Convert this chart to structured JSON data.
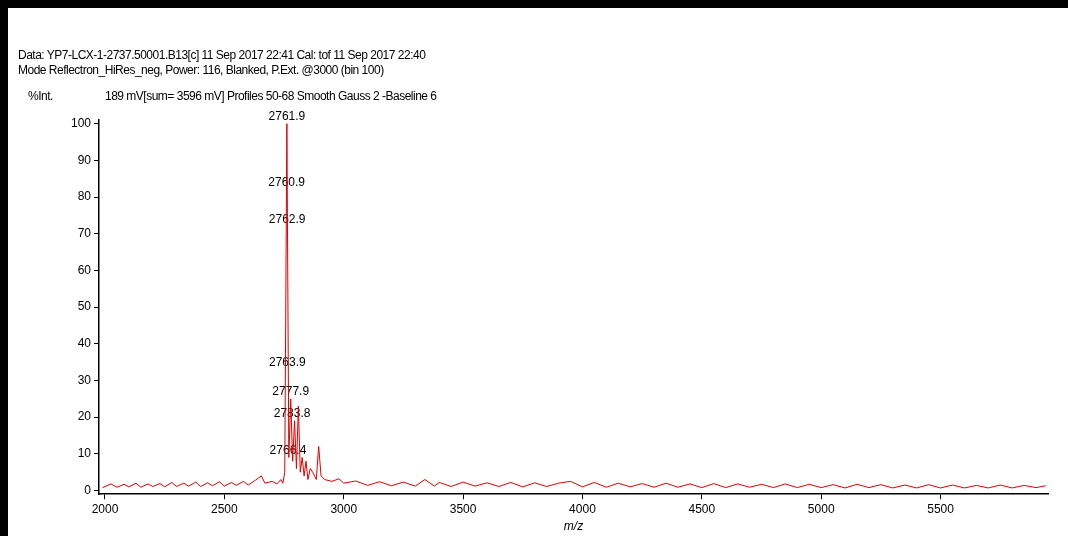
{
  "chart_data": {
    "type": "line",
    "title": "Data: YP7-LCX-1-2737.50001.B13[c] 11 Sep 2017 22:41 Cal: tof 11 Sep 2017 22:40",
    "subtitle": "Mode Reflectron_HiRes_neg, Power: 116, Blanked, P.Ext. @3000 (bin 100)",
    "ylabel": "%Int.",
    "xlabel": "m/z",
    "annotations": [
      "189 mV[sum= 3596 mV]  Profiles 50-68 Smooth Gauss 2 -Baseline 6",
      {
        "text": "2761.9",
        "x": 2761.9,
        "y": 100
      },
      {
        "text": "2760.9",
        "x": 2760.9,
        "y": 82
      },
      {
        "text": "2762.9",
        "x": 2762.9,
        "y": 72
      },
      {
        "text": "2763.9",
        "x": 2763.9,
        "y": 33
      },
      {
        "text": "2777.9",
        "x": 2777.9,
        "y": 25
      },
      {
        "text": "2783.8",
        "x": 2783.8,
        "y": 19
      },
      {
        "text": "2766.4",
        "x": 2766.4,
        "y": 9
      }
    ],
    "x": [
      1990,
      2025,
      2050,
      2080,
      2100,
      2130,
      2150,
      2180,
      2200,
      2230,
      2250,
      2280,
      2300,
      2330,
      2350,
      2380,
      2400,
      2430,
      2450,
      2480,
      2500,
      2530,
      2550,
      2580,
      2600,
      2630,
      2655,
      2670,
      2700,
      2720,
      2737,
      2745,
      2753,
      2761.9,
      2770,
      2778,
      2786,
      2794,
      2802,
      2810,
      2818,
      2826,
      2834,
      2842,
      2850,
      2860,
      2870,
      2885,
      2895,
      2905,
      2920,
      2950,
      2980,
      3000,
      3050,
      3100,
      3150,
      3200,
      3250,
      3300,
      3340,
      3380,
      3400,
      3450,
      3500,
      3550,
      3600,
      3650,
      3700,
      3750,
      3800,
      3850,
      3900,
      3950,
      4000,
      4050,
      4100,
      4150,
      4200,
      4250,
      4300,
      4350,
      4400,
      4450,
      4500,
      4550,
      4600,
      4650,
      4700,
      4750,
      4800,
      4850,
      4900,
      4950,
      5000,
      5050,
      5100,
      5150,
      5200,
      5250,
      5300,
      5350,
      5400,
      5450,
      5500,
      5550,
      5600,
      5650,
      5700,
      5750,
      5800,
      5850,
      5900,
      5940
    ],
    "series": [
      {
        "color": "#e00000",
        "values": [
          0.8,
          1.8,
          0.9,
          1.7,
          1.0,
          2.0,
          0.9,
          1.8,
          1.1,
          1.9,
          1.0,
          2.2,
          1.1,
          2.0,
          1.2,
          2.3,
          1.1,
          2.1,
          1.3,
          2.4,
          1.2,
          2.2,
          1.4,
          2.5,
          1.5,
          2.8,
          4,
          2,
          2.5,
          1.8,
          3,
          2,
          5,
          100,
          9,
          25,
          8,
          19,
          6,
          23,
          5,
          9,
          4,
          8,
          3,
          6,
          5,
          3,
          12,
          4,
          3,
          2.5,
          3.2,
          2,
          2.6,
          1.4,
          2.4,
          1.3,
          2.3,
          1.2,
          3,
          1.2,
          2.2,
          1.1,
          2.3,
          1.2,
          2.1,
          1.1,
          2.2,
          1.0,
          2.1,
          1.1,
          2.0,
          2.5,
          1.0,
          2.2,
          0.9,
          2.0,
          1.0,
          1.9,
          0.9,
          2.0,
          0.9,
          1.8,
          0.8,
          1.9,
          0.8,
          1.8,
          0.9,
          1.7,
          0.8,
          1.8,
          0.8,
          1.7,
          0.8,
          1.6,
          0.7,
          1.7,
          0.8,
          1.6,
          0.7,
          1.5,
          0.7,
          1.6,
          0.7,
          1.5,
          0.7,
          1.4,
          0.7,
          1.5,
          0.7,
          1.4,
          0.8,
          1.3
        ]
      }
    ],
    "xlim": [
      1975,
      5950
    ],
    "xticks": [
      2000,
      2500,
      3000,
      3500,
      4000,
      4500,
      5000,
      5500
    ],
    "ylim": [
      -1,
      101
    ],
    "yticks": [
      0,
      10,
      20,
      30,
      40,
      50,
      60,
      70,
      80,
      90,
      100
    ],
    "grid": false,
    "legend": false,
    "marker": "none",
    "line_style": "solid"
  }
}
